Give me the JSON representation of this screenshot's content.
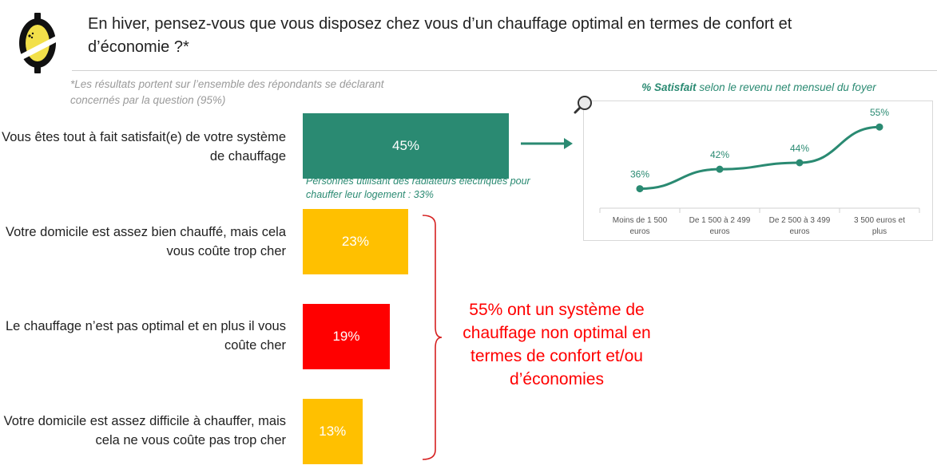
{
  "title": "En hiver, pensez-vous que vous disposez chez vous d’un chauffage optimal en termes de confort et d’économie ?*",
  "note": "*Les résultats portent sur l’ensemble des répondants se déclarant concernés par la question (95%)",
  "subnote": "Personnes utilisant des radiateurs électriques pour chauffer leur logement : 33%",
  "callout": "55% ont un système de chauffage non optimal en termes de confort et/ou d’économies",
  "colors": {
    "green": "#2a8a72",
    "yellow": "#ffc000",
    "red": "#ff0000"
  },
  "chart_data": [
    {
      "type": "bar",
      "orientation": "horizontal",
      "categories": [
        "Vous êtes tout à fait satisfait(e) de votre système de chauffage",
        "Votre domicile est assez bien chauffé, mais cela vous coûte trop cher",
        "Le chauffage n’est pas optimal et en plus il vous coûte cher",
        "Votre domicile est assez difficile à chauffer, mais cela ne vous coûte pas trop cher"
      ],
      "values": [
        45,
        23,
        19,
        13
      ],
      "labels": [
        "45%",
        "23%",
        "19%",
        "13%"
      ],
      "colors": [
        "#2a8a72",
        "#ffc000",
        "#ff0000",
        "#ffc000"
      ],
      "xlim": [
        0,
        100
      ]
    },
    {
      "type": "line",
      "title_emphasis": "% Satisfait",
      "title_rest": " selon le revenu net mensuel du foyer",
      "categories": [
        "Moins de 1 500 euros",
        "De 1 500 à 2 499 euros",
        "De 2 500 à 3 499 euros",
        "3 500 euros et plus"
      ],
      "values": [
        36,
        42,
        44,
        55
      ],
      "labels": [
        "36%",
        "42%",
        "44%",
        "55%"
      ],
      "color": "#2a8a72",
      "ylim": [
        30,
        58
      ]
    }
  ]
}
